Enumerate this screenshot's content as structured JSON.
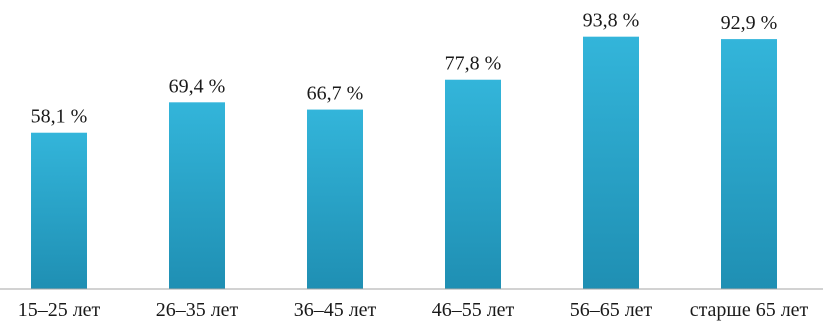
{
  "chart_data": {
    "type": "bar",
    "title": "",
    "xlabel": "",
    "ylabel": "",
    "ylim": [
      0,
      100
    ],
    "grid": false,
    "legend": "none",
    "bar_color_top": "#33b5da",
    "bar_color_bottom": "#1f8fb3",
    "axis_color": "#a6a6a6",
    "categories": [
      "15–25 лет",
      "26–35 лет",
      "36–45 лет",
      "46–55 лет",
      "56–65 лет",
      "старше 65 лет"
    ],
    "values": [
      58.1,
      69.4,
      66.7,
      77.8,
      93.8,
      92.9
    ],
    "value_labels": [
      "58,1 %",
      "69,4 %",
      "66,7 %",
      "77,8 %",
      "93,8 %",
      "92,9 %"
    ]
  }
}
